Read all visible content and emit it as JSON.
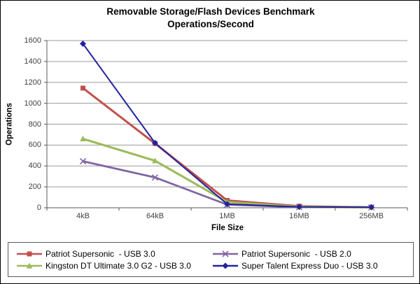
{
  "chart_data": {
    "type": "line",
    "title": "Removable Storage/Flash Devices Benchmark Operations/Second",
    "title_lines": [
      "Removable Storage/Flash Devices Benchmark",
      "Operations/Second"
    ],
    "xlabel": "File Size",
    "ylabel": "Operations",
    "categories": [
      "4kB",
      "64kB",
      "1MB",
      "16MB",
      "256MB"
    ],
    "ylim": [
      0,
      1600
    ],
    "yticks": [
      0,
      200,
      400,
      600,
      800,
      1000,
      1200,
      1400,
      1600
    ],
    "grid": true,
    "legend_position": "bottom",
    "series": [
      {
        "name": "Patriot Supersonic  - USB 3.0",
        "marker": "square",
        "color": "#c0504d",
        "line_width": 3,
        "values": [
          1145,
          615,
          70,
          15,
          5
        ]
      },
      {
        "name": "Patriot Supersonic  - USB 2.0",
        "marker": "x",
        "color": "#8064a2",
        "line_width": 2.8,
        "values": [
          445,
          290,
          30,
          6,
          3
        ]
      },
      {
        "name": "Kingston DT Ultimate 3.0 G2 - USB 3.0",
        "marker": "triangle",
        "color": "#9bbb59",
        "line_width": 3,
        "values": [
          660,
          450,
          55,
          10,
          4
        ]
      },
      {
        "name": "Super Talent Express Duo - USB 3.0",
        "marker": "diamond",
        "color": "#2323a0",
        "line_width": 2,
        "values": [
          1570,
          620,
          35,
          8,
          5
        ]
      }
    ],
    "colors": {
      "grid_line": "#9a9a9a",
      "axis_line": "#595959",
      "text": "#404040"
    }
  }
}
